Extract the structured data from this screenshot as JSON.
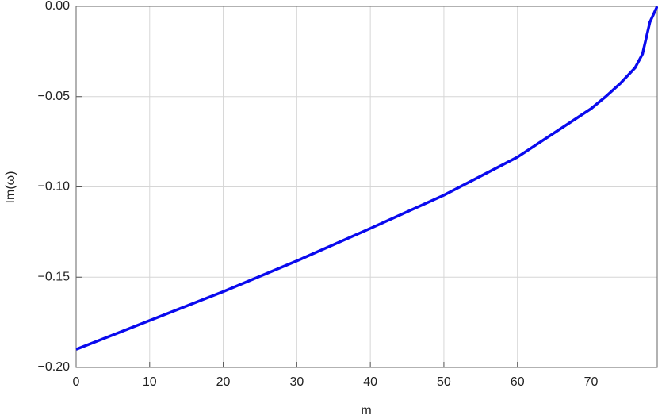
{
  "chart_data": {
    "type": "line",
    "x_label": "m",
    "y_label": "Im(ω)",
    "series": [
      {
        "name": "Im(ω)",
        "color": "#0a0aee",
        "x": [
          0,
          10,
          20,
          30,
          40,
          50,
          60,
          70,
          72,
          74,
          76,
          77,
          78,
          79
        ],
        "values": [
          -0.19,
          -0.174,
          -0.158,
          -0.141,
          -0.123,
          -0.1046,
          -0.0835,
          -0.0567,
          -0.05,
          -0.0426,
          -0.034,
          -0.0264,
          -0.0088,
          0.0
        ]
      }
    ],
    "xlim": [
      0,
      79
    ],
    "xticks": [
      0,
      10,
      20,
      30,
      40,
      50,
      60,
      70
    ],
    "ylim": [
      -0.2,
      0.0
    ],
    "yticks": [
      {
        "value": -0.2,
        "label": "−0.20"
      },
      {
        "value": -0.15,
        "label": "−0.15"
      },
      {
        "value": -0.1,
        "label": "−0.10"
      },
      {
        "value": -0.05,
        "label": "−0.05"
      },
      {
        "value": 0.0,
        "label": "0.00"
      }
    ],
    "grid": true
  }
}
